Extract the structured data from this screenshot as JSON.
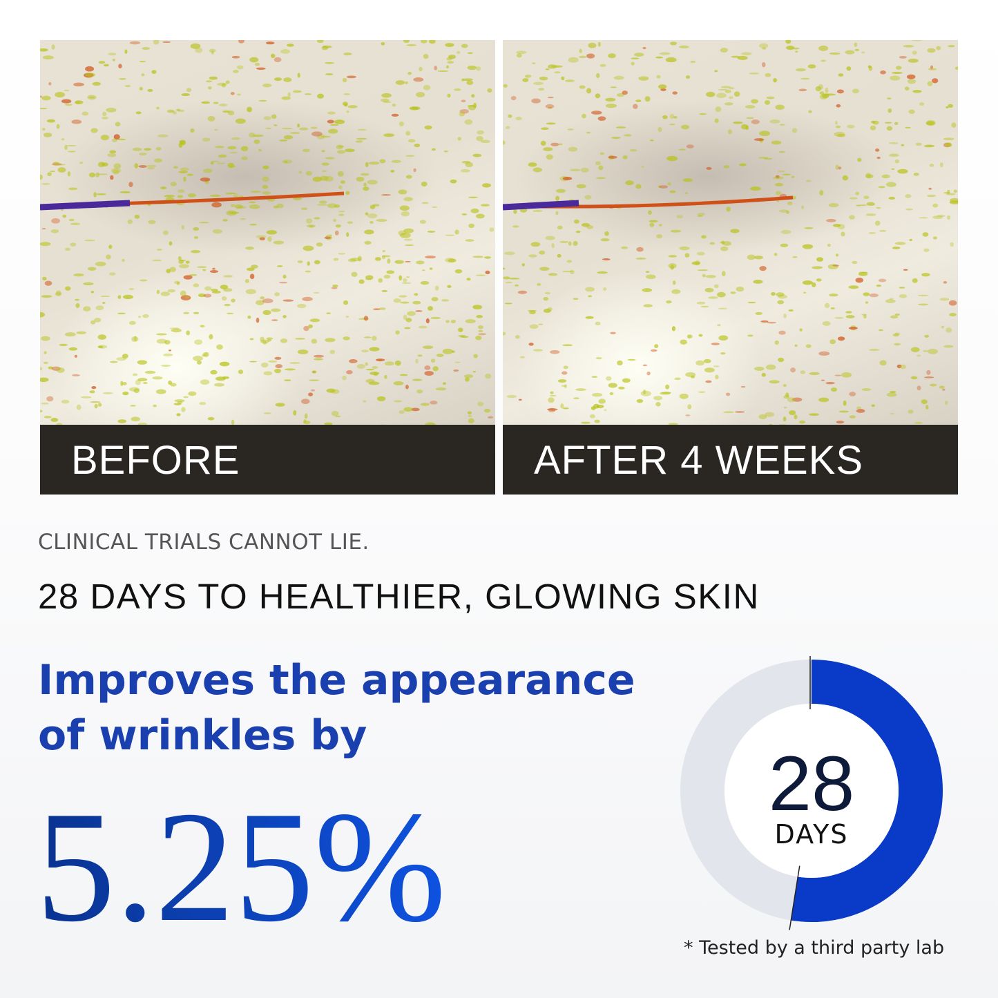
{
  "panels": [
    {
      "caption": "BEFORE"
    },
    {
      "caption": "AFTER 4 WEEKS"
    }
  ],
  "eyebrow": "CLINICAL TRIALS CANNOT LIE.",
  "headline": "28 DAYS TO HEALTHIER, GLOWING SKIN",
  "claim": {
    "line1": "Improves the appearance",
    "line2": "of wrinkles by"
  },
  "stat": "5.25%",
  "donut": {
    "number": "28",
    "unit": "DAYS",
    "fill_fraction": 0.525,
    "fill_color": "#0a3bc8",
    "track_color": "#e2e5ec"
  },
  "footnote": "* Tested by a third party lab"
}
